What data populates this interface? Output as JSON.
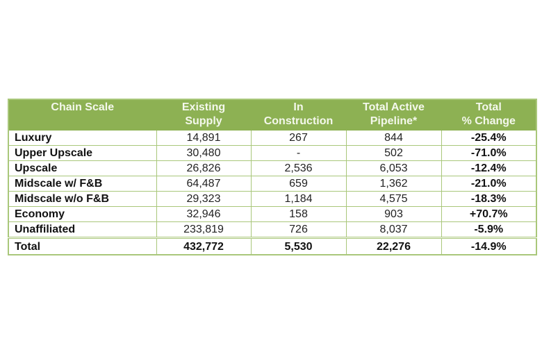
{
  "table": {
    "headers": [
      [
        "Chain Scale",
        ""
      ],
      [
        "Existing",
        "Supply"
      ],
      [
        "In",
        "Construction"
      ],
      [
        "Total Active",
        "Pipeline*"
      ],
      [
        "Total",
        "% Change"
      ]
    ],
    "rows": [
      {
        "chain_scale": "Luxury",
        "existing_supply": "14,891",
        "in_construction": "267",
        "total_active_pipeline": "844",
        "total_pct_change": "-25.4%"
      },
      {
        "chain_scale": "Upper Upscale",
        "existing_supply": "30,480",
        "in_construction": "-",
        "total_active_pipeline": "502",
        "total_pct_change": "-71.0%"
      },
      {
        "chain_scale": "Upscale",
        "existing_supply": "26,826",
        "in_construction": "2,536",
        "total_active_pipeline": "6,053",
        "total_pct_change": "-12.4%"
      },
      {
        "chain_scale": "Midscale w/ F&B",
        "existing_supply": "64,487",
        "in_construction": "659",
        "total_active_pipeline": "1,362",
        "total_pct_change": "-21.0%"
      },
      {
        "chain_scale": "Midscale w/o F&B",
        "existing_supply": "29,323",
        "in_construction": "1,184",
        "total_active_pipeline": "4,575",
        "total_pct_change": "-18.3%"
      },
      {
        "chain_scale": "Economy",
        "existing_supply": "32,946",
        "in_construction": "158",
        "total_active_pipeline": "903",
        "total_pct_change": "+70.7%"
      },
      {
        "chain_scale": "Unaffiliated",
        "existing_supply": "233,819",
        "in_construction": "726",
        "total_active_pipeline": "8,037",
        "total_pct_change": "-5.9%"
      }
    ],
    "total": {
      "chain_scale": "Total",
      "existing_supply": "432,772",
      "in_construction": "5,530",
      "total_active_pipeline": "22,276",
      "total_pct_change": "-14.9%"
    }
  },
  "colors": {
    "header_bg": "#8db153",
    "header_text": "#f4f8ec",
    "border": "#a9c77a"
  }
}
